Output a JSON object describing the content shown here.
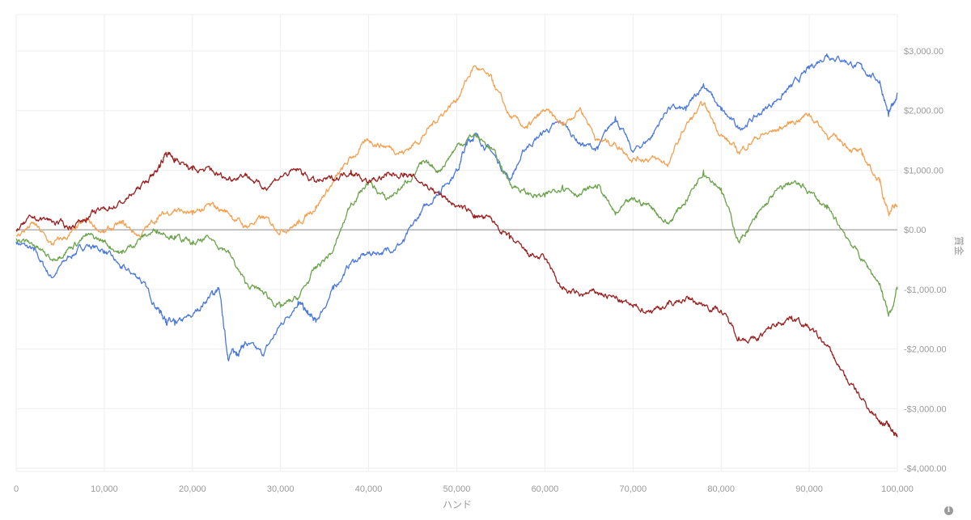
{
  "chart_data": {
    "type": "line",
    "xlabel": "ハンド",
    "ylabel": "賞金",
    "xlim": [
      0,
      100000
    ],
    "ylim": [
      -4000,
      3000
    ],
    "x_ticks": [
      0,
      10000,
      20000,
      30000,
      40000,
      50000,
      60000,
      70000,
      80000,
      90000,
      100000
    ],
    "x_tick_labels": [
      "0",
      "10,000",
      "20,000",
      "30,000",
      "40,000",
      "50,000",
      "60,000",
      "70,000",
      "80,000",
      "90,000",
      "100,000"
    ],
    "y_ticks": [
      3000,
      2000,
      1000,
      0,
      -1000,
      -2000,
      -3000,
      -4000
    ],
    "y_tick_labels": [
      "$3,000.00",
      "$2,000.00",
      "$1,000.00",
      "$0.00",
      "-$1,000.00",
      "-$2,000.00",
      "-$3,000.00",
      "-$4,000.00"
    ],
    "grid": true,
    "legend": "none",
    "series": [
      {
        "color": "#4a78e0",
        "x": [
          0,
          2000,
          4000,
          6000,
          8000,
          10000,
          12000,
          14000,
          16000,
          17000,
          18000,
          20000,
          22000,
          23000,
          24000,
          25000,
          26000,
          28000,
          30000,
          32000,
          33000,
          34000,
          36000,
          38000,
          40000,
          42000,
          44000,
          46000,
          48000,
          50000,
          51000,
          52000,
          54000,
          56000,
          58000,
          60000,
          62000,
          64000,
          66000,
          68000,
          70000,
          72000,
          74000,
          76000,
          78000,
          80000,
          82000,
          84000,
          86000,
          88000,
          90000,
          92000,
          94000,
          96000,
          98000,
          99000,
          100000
        ],
        "y": [
          -200,
          -350,
          -800,
          -450,
          -250,
          -350,
          -650,
          -800,
          -1300,
          -1500,
          -1600,
          -1450,
          -1100,
          -1000,
          -2100,
          -2050,
          -1900,
          -2100,
          -1600,
          -1200,
          -1400,
          -1550,
          -1000,
          -550,
          -400,
          -350,
          -200,
          300,
          650,
          1000,
          1400,
          1600,
          1300,
          850,
          1400,
          1650,
          1800,
          1450,
          1350,
          1900,
          1300,
          1550,
          2050,
          2000,
          2450,
          2000,
          1700,
          1900,
          2150,
          2400,
          2700,
          2950,
          2850,
          2700,
          2500,
          1900,
          2300
        ]
      },
      {
        "color": "#f5a050",
        "x": [
          0,
          2000,
          4000,
          6000,
          8000,
          10000,
          12000,
          14000,
          16000,
          18000,
          20000,
          22000,
          24000,
          26000,
          28000,
          30000,
          32000,
          34000,
          36000,
          38000,
          40000,
          42000,
          44000,
          46000,
          48000,
          50000,
          52000,
          54000,
          56000,
          58000,
          60000,
          62000,
          64000,
          66000,
          68000,
          70000,
          72000,
          74000,
          76000,
          78000,
          80000,
          82000,
          84000,
          86000,
          88000,
          90000,
          92000,
          94000,
          96000,
          98000,
          99000,
          100000
        ],
        "y": [
          -100,
          100,
          -250,
          -100,
          150,
          -50,
          100,
          -100,
          200,
          350,
          250,
          400,
          300,
          50,
          200,
          0,
          100,
          400,
          800,
          1200,
          1500,
          1400,
          1300,
          1550,
          1900,
          2200,
          2750,
          2500,
          1900,
          1700,
          2000,
          1750,
          2050,
          1500,
          1450,
          1200,
          1200,
          1100,
          1750,
          2100,
          1600,
          1300,
          1550,
          1650,
          1800,
          1950,
          1600,
          1450,
          1250,
          800,
          300,
          400
        ]
      },
      {
        "color": "#6aa34a",
        "x": [
          0,
          2000,
          4000,
          6000,
          8000,
          10000,
          12000,
          14000,
          16000,
          18000,
          20000,
          22000,
          24000,
          26000,
          28000,
          30000,
          32000,
          34000,
          36000,
          38000,
          40000,
          42000,
          44000,
          46000,
          48000,
          50000,
          52000,
          54000,
          56000,
          58000,
          60000,
          62000,
          64000,
          66000,
          68000,
          70000,
          72000,
          74000,
          76000,
          78000,
          80000,
          82000,
          84000,
          86000,
          88000,
          90000,
          92000,
          94000,
          96000,
          98000,
          99000,
          100000
        ],
        "y": [
          -150,
          -250,
          -500,
          -300,
          -100,
          -200,
          -400,
          -150,
          0,
          -100,
          -250,
          -150,
          -350,
          -900,
          -1050,
          -1300,
          -1150,
          -650,
          -350,
          450,
          800,
          500,
          750,
          1100,
          1000,
          1400,
          1600,
          1350,
          800,
          600,
          550,
          750,
          600,
          750,
          250,
          500,
          400,
          100,
          500,
          1000,
          700,
          -200,
          200,
          600,
          800,
          650,
          350,
          -50,
          -500,
          -900,
          -1450,
          -1000
        ]
      },
      {
        "color": "#9c1f1f",
        "x": [
          0,
          2000,
          4000,
          6000,
          8000,
          10000,
          12000,
          14000,
          16000,
          17000,
          18000,
          20000,
          22000,
          24000,
          26000,
          28000,
          30000,
          32000,
          34000,
          36000,
          38000,
          40000,
          42000,
          44000,
          46000,
          48000,
          50000,
          52000,
          54000,
          56000,
          58000,
          60000,
          62000,
          64000,
          66000,
          68000,
          70000,
          72000,
          74000,
          76000,
          78000,
          80000,
          82000,
          84000,
          86000,
          88000,
          90000,
          92000,
          94000,
          96000,
          98000,
          99000,
          100000
        ],
        "y": [
          0,
          200,
          150,
          50,
          200,
          350,
          450,
          700,
          1000,
          1300,
          1200,
          1000,
          1000,
          850,
          950,
          700,
          900,
          1000,
          800,
          850,
          1000,
          800,
          900,
          950,
          800,
          600,
          400,
          250,
          150,
          -150,
          -400,
          -500,
          -1000,
          -1100,
          -1050,
          -1150,
          -1300,
          -1350,
          -1250,
          -1150,
          -1250,
          -1350,
          -1800,
          -1850,
          -1600,
          -1450,
          -1650,
          -1950,
          -2450,
          -2850,
          -3200,
          -3300,
          -3450
        ]
      }
    ]
  }
}
